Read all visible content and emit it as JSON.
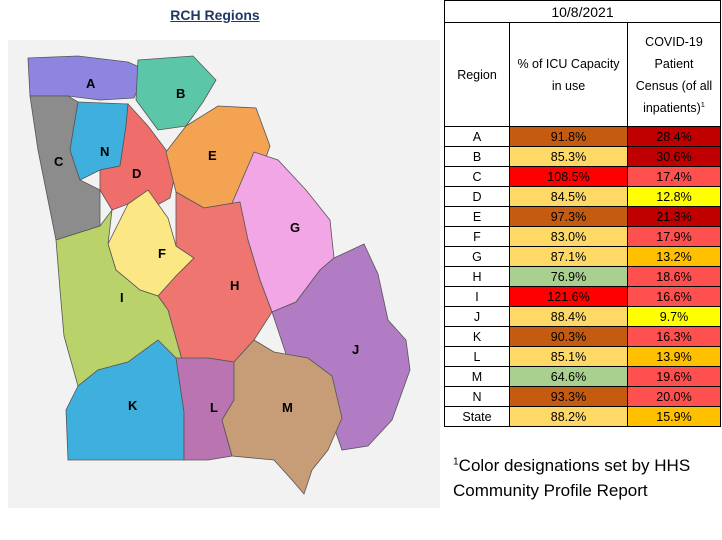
{
  "map": {
    "title": "RCH Regions",
    "regions": [
      {
        "id": "A",
        "color": "#8e85e0"
      },
      {
        "id": "B",
        "color": "#5cc6a8"
      },
      {
        "id": "C",
        "color": "#8c8c8c"
      },
      {
        "id": "D",
        "color": "#ef6e6b"
      },
      {
        "id": "E",
        "color": "#f4a352"
      },
      {
        "id": "F",
        "color": "#fbe784"
      },
      {
        "id": "G",
        "color": "#f2a6e6"
      },
      {
        "id": "H",
        "color": "#ef7570"
      },
      {
        "id": "I",
        "color": "#b9d26a"
      },
      {
        "id": "J",
        "color": "#b27cc4"
      },
      {
        "id": "K",
        "color": "#3fb0de"
      },
      {
        "id": "L",
        "color": "#b974b1"
      },
      {
        "id": "M",
        "color": "#c69d76"
      },
      {
        "id": "N",
        "color": "#3fb0de"
      }
    ]
  },
  "table": {
    "date": "10/8/2021",
    "headers": {
      "region": "Region",
      "icu": "% of ICU Capacity in use",
      "covid": "COVID-19 Patient Census (of all inpatients)",
      "covid_sup": "1"
    },
    "rows": [
      {
        "region": "A",
        "icu": "91.8%",
        "icu_color": "#c55a11",
        "covid": "28.4%",
        "covid_color": "#c00000"
      },
      {
        "region": "B",
        "icu": "85.3%",
        "icu_color": "#ffd966",
        "covid": "30.6%",
        "covid_color": "#c00000"
      },
      {
        "region": "C",
        "icu": "108.5%",
        "icu_color": "#ff0000",
        "covid": "17.4%",
        "covid_color": "#ff5050"
      },
      {
        "region": "D",
        "icu": "84.5%",
        "icu_color": "#ffd966",
        "covid": "12.8%",
        "covid_color": "#ffff00"
      },
      {
        "region": "E",
        "icu": "97.3%",
        "icu_color": "#c55a11",
        "covid": "21.3%",
        "covid_color": "#c00000"
      },
      {
        "region": "F",
        "icu": "83.0%",
        "icu_color": "#ffd966",
        "covid": "17.9%",
        "covid_color": "#ff5050"
      },
      {
        "region": "G",
        "icu": "87.1%",
        "icu_color": "#ffd966",
        "covid": "13.2%",
        "covid_color": "#ffc000"
      },
      {
        "region": "H",
        "icu": "76.9%",
        "icu_color": "#a9d08e",
        "covid": "18.6%",
        "covid_color": "#ff5050"
      },
      {
        "region": "I",
        "icu": "121.6%",
        "icu_color": "#ff0000",
        "covid": "16.6%",
        "covid_color": "#ff5050"
      },
      {
        "region": "J",
        "icu": "88.4%",
        "icu_color": "#ffd966",
        "covid": "9.7%",
        "covid_color": "#ffff00"
      },
      {
        "region": "K",
        "icu": "90.3%",
        "icu_color": "#c55a11",
        "covid": "16.3%",
        "covid_color": "#ff5050"
      },
      {
        "region": "L",
        "icu": "85.1%",
        "icu_color": "#ffd966",
        "covid": "13.9%",
        "covid_color": "#ffc000"
      },
      {
        "region": "M",
        "icu": "64.6%",
        "icu_color": "#a9d08e",
        "covid": "19.6%",
        "covid_color": "#ff5050"
      },
      {
        "region": "N",
        "icu": "93.3%",
        "icu_color": "#c55a11",
        "covid": "20.0%",
        "covid_color": "#ff5050"
      },
      {
        "region": "State",
        "icu": "88.2%",
        "icu_color": "#ffd966",
        "covid": "15.9%",
        "covid_color": "#ffc000"
      }
    ]
  },
  "footnote": {
    "sup": "1",
    "text": "Color designations set by HHS Community Profile Report"
  }
}
